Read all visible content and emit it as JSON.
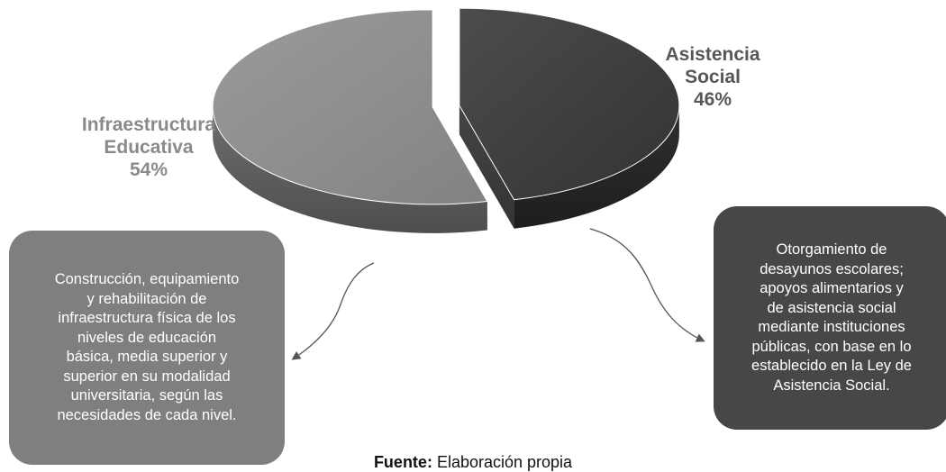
{
  "chart_data": {
    "type": "pie",
    "slices": [
      {
        "label_lines": [
          "Infraestructura",
          "Educativa"
        ],
        "percent_text": "54%",
        "value": 54,
        "color": "#8a8a8a"
      },
      {
        "label_lines": [
          "Asistencia",
          "Social"
        ],
        "percent_text": "46%",
        "value": 46,
        "color": "#474747"
      }
    ],
    "legend": "none"
  },
  "notes": {
    "left": {
      "lines": [
        "Construcción, equipamiento",
        "y rehabilitación de",
        "infraestructura física de los",
        "niveles de educación",
        "básica, media superior y",
        "superior en su modalidad",
        "universitaria, según las",
        "necesidades de cada nivel."
      ],
      "color": "#7f7f7f"
    },
    "right": {
      "lines": [
        "Otorgamiento de",
        "desayunos escolares;",
        "apoyos alimentarios y",
        "de asistencia social",
        "mediante instituciones",
        "públicas, con base en lo",
        "establecido en la Ley de",
        "Asistencia Social."
      ],
      "color": "#474747"
    }
  },
  "source": {
    "label": "Fuente:",
    "text": " Elaboración propia"
  }
}
